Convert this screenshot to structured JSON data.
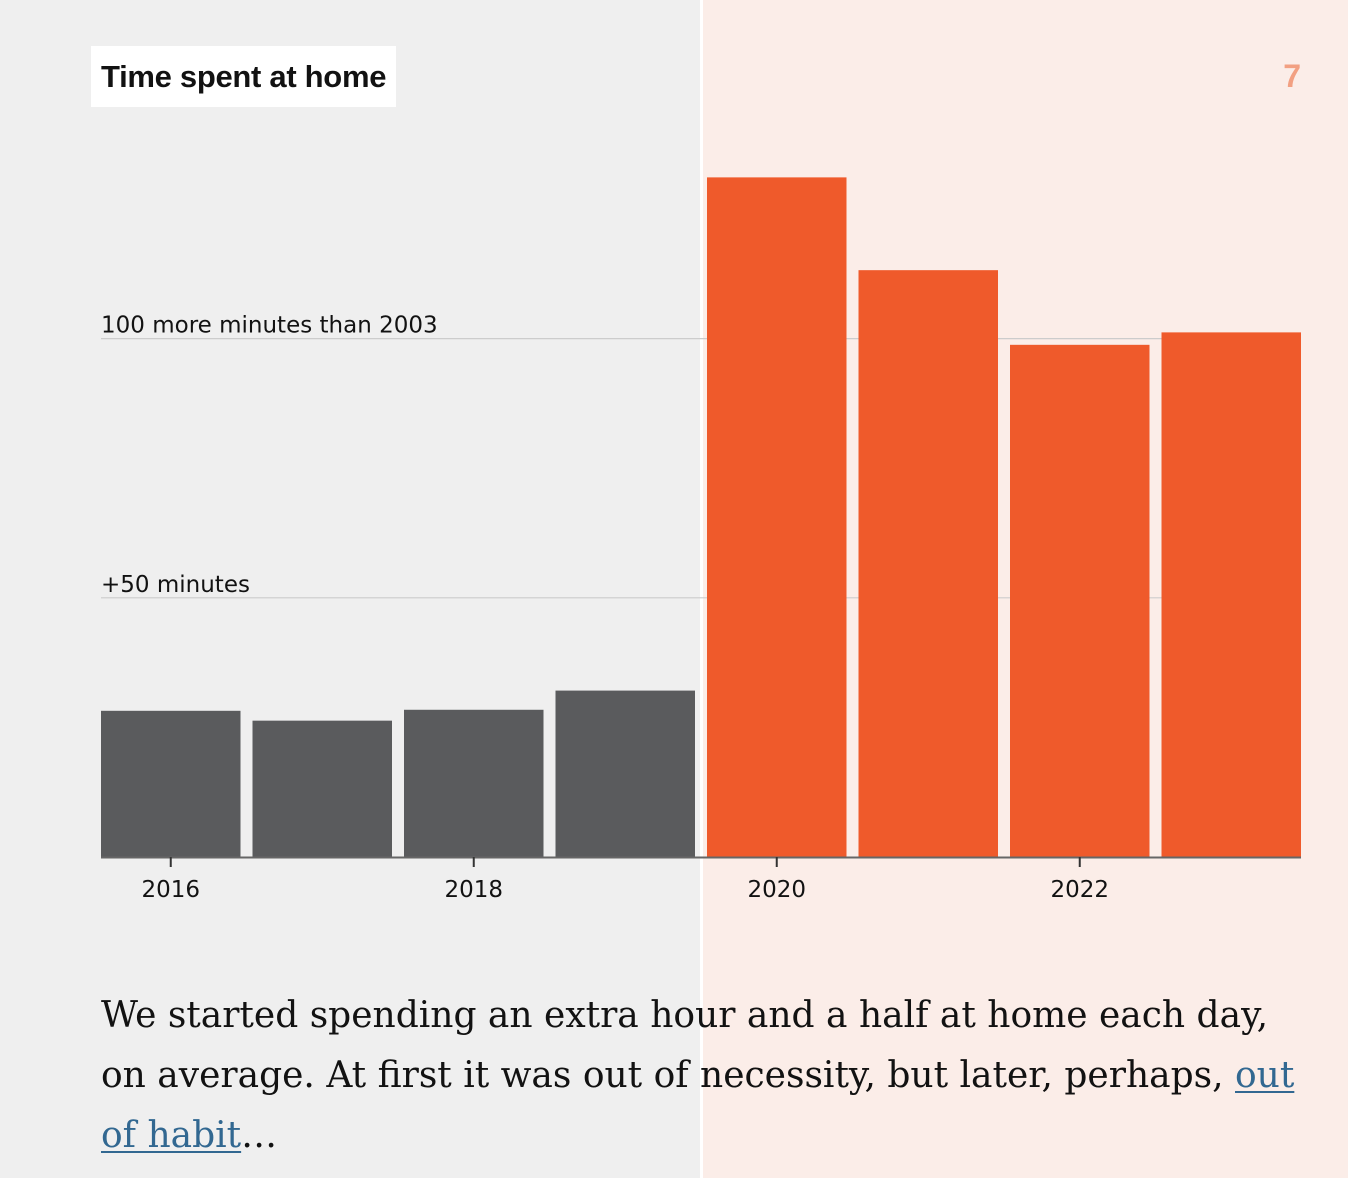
{
  "header": {
    "title": "Time spent at home",
    "step": "7"
  },
  "colors": {
    "pre_pandemic_bar": "#5a5b5d",
    "pandemic_bar": "#ef5a2b",
    "left_panel_bg": "#efefef",
    "right_panel_bg": "#fbede8",
    "gridline": "#cccccc",
    "step_number": "#f2a082",
    "link": "#326891"
  },
  "chart_data": {
    "type": "bar",
    "title": "Time spent at home",
    "categories": [
      "2016",
      "2017",
      "2018",
      "2019",
      "2020",
      "2021",
      "2022",
      "2023"
    ],
    "values": [
      28.2,
      26.3,
      28.4,
      32.1,
      131.1,
      113.2,
      98.8,
      101.2
    ],
    "highlight_from_index": 4,
    "x_tick_labels": [
      "2016",
      "2018",
      "2020",
      "2022"
    ],
    "y_gridlines": [
      {
        "value": 50,
        "label": "+50 minutes"
      },
      {
        "value": 100,
        "label": "100 more minutes than 2003"
      }
    ],
    "ylim": [
      0,
      150
    ],
    "xlabel": "",
    "ylabel": "",
    "grid": true,
    "legend": "none"
  },
  "caption": {
    "text_before_link": "We started spending an extra hour and a half at home each day, on average. At first it was out of necessity, but later, perhaps, ",
    "link_text": "out of habit",
    "text_after_link": "…"
  }
}
